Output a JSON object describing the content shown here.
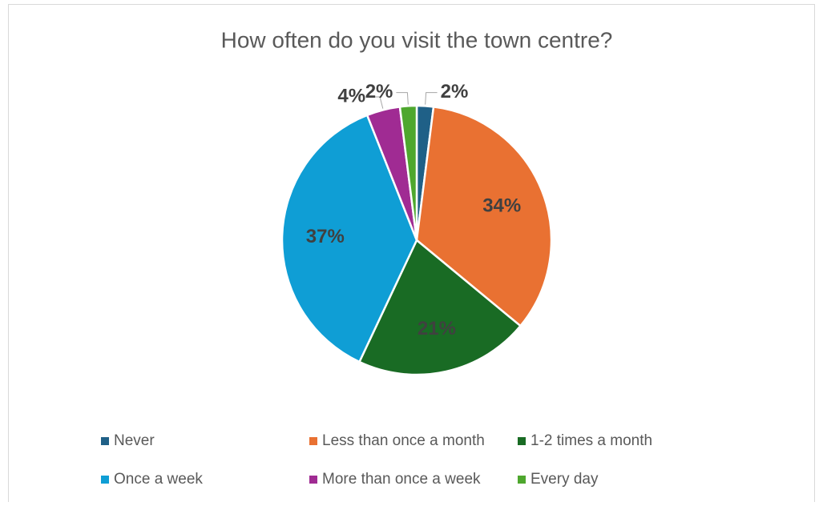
{
  "chart_data": {
    "type": "pie",
    "title": "How often do you visit the town centre?",
    "categories": [
      "Never",
      "Less than once a month",
      "1-2 times a month",
      "Once a week",
      "More than once a week",
      "Every day"
    ],
    "values": [
      2,
      34,
      21,
      37,
      4,
      2
    ],
    "value_labels": [
      "2%",
      "34%",
      "21%",
      "37%",
      "4%",
      "2%"
    ],
    "colors": [
      "#1f6087",
      "#e97132",
      "#196b24",
      "#0f9ed5",
      "#a02b93",
      "#4ea72e"
    ],
    "legend": "bottom"
  }
}
